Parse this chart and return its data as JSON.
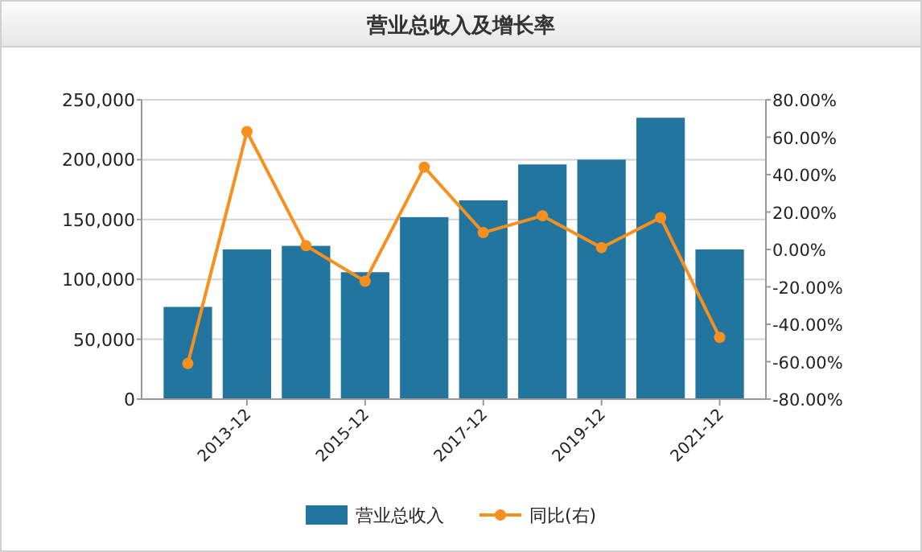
{
  "chart_data": {
    "type": "bar",
    "title": "营业总收入及增长率",
    "categories": [
      null,
      "2013-12",
      null,
      "2015-12",
      null,
      "2017-12",
      null,
      "2019-12",
      null,
      "2021-12"
    ],
    "series": [
      {
        "name": "营业总收入",
        "color": "#21759f",
        "values": [
          77000,
          125000,
          128000,
          106000,
          152000,
          166000,
          196000,
          200000,
          235000,
          125000
        ]
      },
      {
        "name": "同比(右)",
        "type": "line",
        "axis": "y2",
        "color": "#f7901e",
        "marker": "circle",
        "values": [
          -61,
          63,
          2,
          -17,
          44,
          9,
          18,
          1,
          17,
          -47
        ]
      }
    ],
    "ylim": [
      0,
      250000
    ],
    "yticks": [
      {
        "value": 0,
        "label": "0"
      },
      {
        "value": 50000,
        "label": "50,000"
      },
      {
        "value": 100000,
        "label": "100,000"
      },
      {
        "value": 150000,
        "label": "150,000"
      },
      {
        "value": 200000,
        "label": "200,000"
      },
      {
        "value": 250000,
        "label": "250,000"
      }
    ],
    "y2lim": [
      -80,
      80
    ],
    "y2ticks": [
      {
        "value": -80,
        "label": "-80.00%"
      },
      {
        "value": -60,
        "label": "-60.00%"
      },
      {
        "value": -40,
        "label": "-40.00%"
      },
      {
        "value": -20,
        "label": "-20.00%"
      },
      {
        "value": 0,
        "label": "0.00%"
      },
      {
        "value": 20,
        "label": "20.00%"
      },
      {
        "value": 40,
        "label": "40.00%"
      },
      {
        "value": 60,
        "label": "60.00%"
      },
      {
        "value": 80,
        "label": "80.00%"
      }
    ],
    "grid": "y",
    "legend": "bottom"
  }
}
